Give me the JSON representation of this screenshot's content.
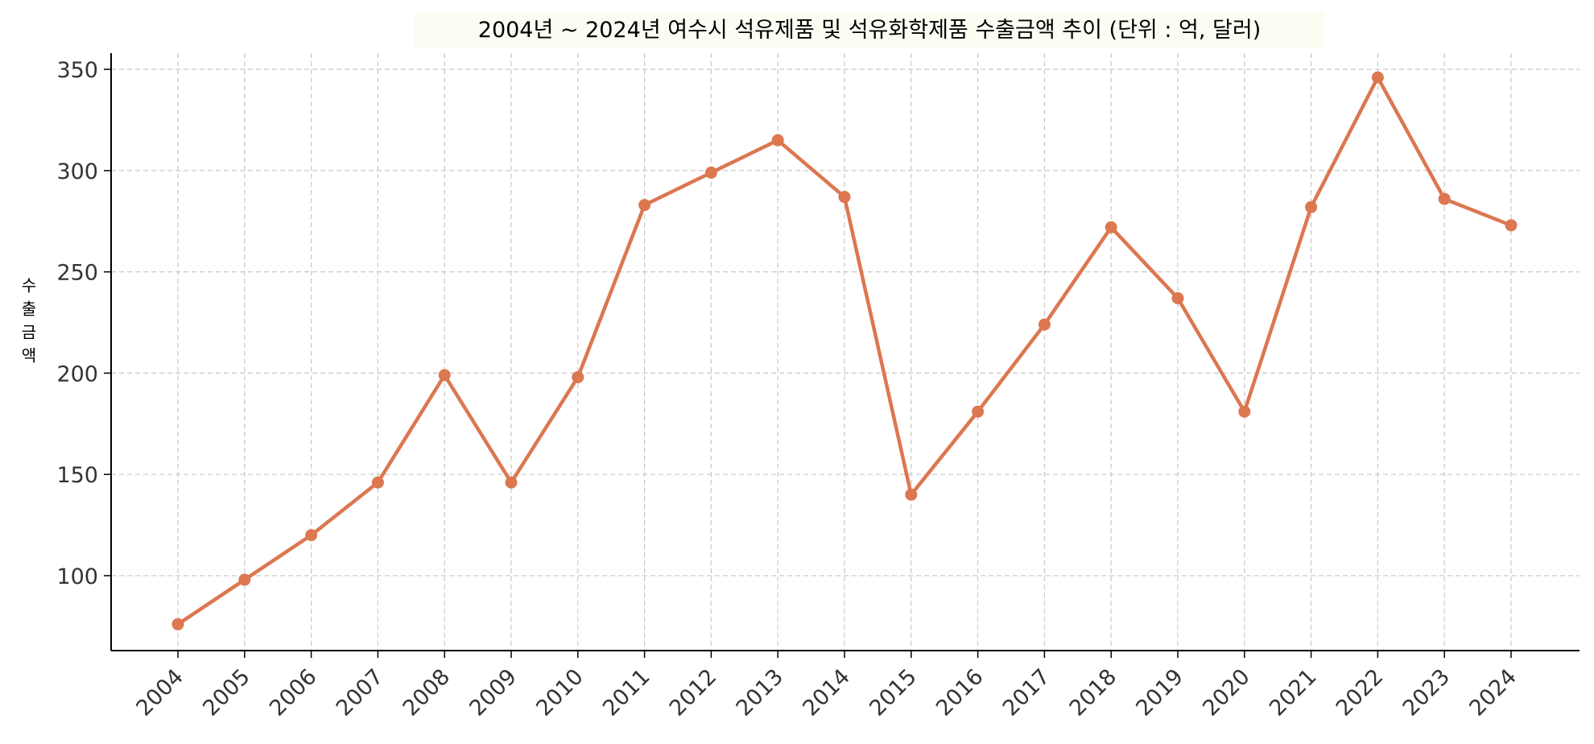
{
  "chart_data": {
    "type": "line",
    "title": "2004년 ~ 2024년 여수시 석유제품 및 석유화학제품 수출금액 추이 (단위 : 억, 달러)",
    "xlabel": "",
    "ylabel": "수출금액",
    "categories": [
      "2004",
      "2005",
      "2006",
      "2007",
      "2008",
      "2009",
      "2010",
      "2011",
      "2012",
      "2013",
      "2014",
      "2015",
      "2016",
      "2017",
      "2018",
      "2019",
      "2020",
      "2021",
      "2022",
      "2023",
      "2024"
    ],
    "series": [
      {
        "values": [
          76,
          98,
          120,
          146,
          199,
          146,
          198,
          283,
          299,
          315,
          287,
          140,
          181,
          224,
          272,
          237,
          181,
          282,
          346,
          286,
          273
        ]
      }
    ],
    "ylim": [
      63,
      358
    ],
    "yticks": [
      100,
      150,
      200,
      250,
      300,
      350
    ],
    "grid": true,
    "legend": "none",
    "colors": {
      "line": "#dc7750",
      "grid": "#c8c8c8",
      "axis": "#000000",
      "title_bg": "#fcfcf3"
    }
  }
}
